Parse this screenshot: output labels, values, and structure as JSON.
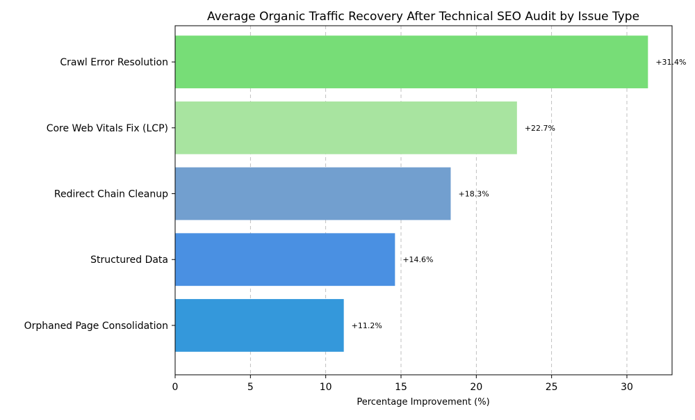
{
  "chart_data": {
    "type": "bar",
    "orientation": "horizontal",
    "title": "Average Organic Traffic Recovery After Technical SEO Audit by Issue Type",
    "xlabel": "Percentage Improvement (%)",
    "ylabel": "",
    "xlim": [
      0,
      33
    ],
    "xticks": [
      0,
      5,
      10,
      15,
      20,
      25,
      30
    ],
    "grid": "x-dashed",
    "categories": [
      "Crawl Error Resolution",
      "Core Web Vitals Fix (LCP)",
      "Redirect Chain Cleanup",
      "Structured Data",
      "Orphaned Page Consolidation"
    ],
    "values": [
      31.4,
      22.7,
      18.3,
      14.6,
      11.2
    ],
    "data_labels": [
      "+31.4%",
      "+22.7%",
      "+18.3%",
      "+14.6%",
      "+11.2%"
    ],
    "colors": [
      "#77dd77",
      "#a8e4a0",
      "#729fcf",
      "#4a90e2",
      "#3498db"
    ]
  }
}
